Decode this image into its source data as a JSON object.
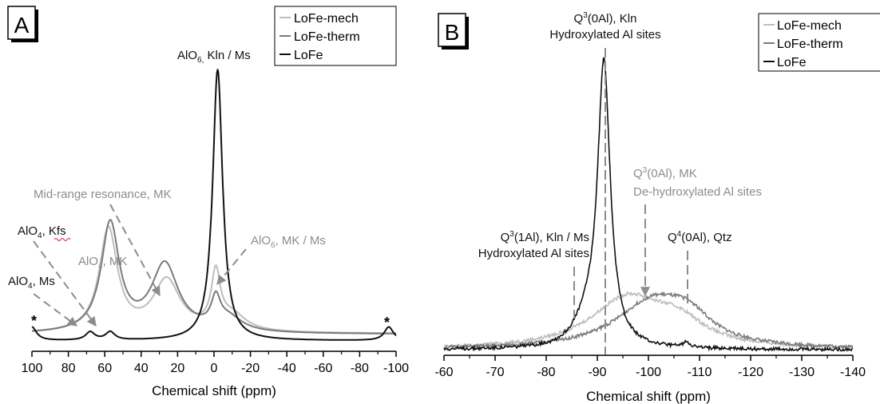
{
  "colors": {
    "mech": "#bdbdbd",
    "therm": "#7a7a7a",
    "lofe": "#111111",
    "annotation": "#8c8c8c",
    "axis": "#000000"
  },
  "chart_data": [
    {
      "type": "line",
      "panel_label": "A",
      "xlabel": "Chemical shift (ppm)",
      "xlim": [
        100,
        -100
      ],
      "xticks": [
        "100",
        "80",
        "60",
        "40",
        "20",
        "0",
        "-20",
        "-40",
        "-60",
        "-80",
        "-100"
      ],
      "tick_values": [
        100,
        80,
        60,
        40,
        20,
        0,
        -20,
        -40,
        -60,
        -80,
        -100
      ],
      "legend": [
        "LoFe-mech",
        "LoFe-therm",
        "LoFe"
      ],
      "legend_position": "top-right",
      "series": [
        {
          "name": "LoFe-mech",
          "peaks": [
            {
              "x": 58,
              "h": 0.38,
              "w": 6
            },
            {
              "x": 26,
              "h": 0.19,
              "w": 9
            },
            {
              "x": -1,
              "h": 0.2,
              "w": 3
            },
            {
              "x": -10,
              "h": 0.06,
              "w": 9
            }
          ],
          "baseline": 0.006
        },
        {
          "name": "LoFe-therm",
          "peaks": [
            {
              "x": 57,
              "h": 0.4,
              "w": 6
            },
            {
              "x": 27,
              "h": 0.25,
              "w": 9
            },
            {
              "x": -1,
              "h": 0.1,
              "w": 3
            },
            {
              "x": -8,
              "h": 0.05,
              "w": 9
            }
          ],
          "baseline": 0.004
        },
        {
          "name": "LoFe",
          "peaks": [
            {
              "x": -2,
              "h": 1.0,
              "w": 3.3
            },
            {
              "x": 68,
              "h": 0.03,
              "w": 3
            },
            {
              "x": 57,
              "h": 0.03,
              "w": 3
            },
            {
              "x": 100,
              "h": 0.05,
              "w": 3
            },
            {
              "x": -96,
              "h": 0.05,
              "w": 3
            }
          ],
          "baseline": -0.02
        }
      ],
      "annotations": [
        {
          "text": "AlO",
          "sub": "6,",
          "rest": " Kln / Ms",
          "color": "lofe"
        },
        {
          "text": "Mid-range resonance, MK",
          "color": "annotation"
        },
        {
          "text": "AlO",
          "sub": "4",
          "rest": ", MK",
          "color": "annotation"
        },
        {
          "text": "AlO",
          "sub": "6",
          "rest": ", MK / Ms",
          "color": "annotation"
        },
        {
          "text": "AlO",
          "sub": "4",
          "rest": ", Kfs",
          "color": "lofe"
        },
        {
          "text": "AlO",
          "sub": "4",
          "rest": ", Ms",
          "color": "lofe"
        }
      ],
      "markers": [
        "*",
        "*"
      ]
    },
    {
      "type": "line",
      "panel_label": "B",
      "xlabel": "Chemical shift (ppm)",
      "xlim": [
        -60,
        -140
      ],
      "xticks": [
        "-60",
        "-70",
        "-80",
        "-90",
        "-100",
        "-110",
        "-120",
        "-130",
        "-140"
      ],
      "tick_values": [
        -60,
        -70,
        -80,
        -90,
        -100,
        -110,
        -120,
        -130,
        -140
      ],
      "legend": [
        "LoFe-mech",
        "LoFe-therm",
        "LoFe"
      ],
      "legend_position": "top-right",
      "series": [
        {
          "name": "LoFe-mech",
          "peaks": [
            {
              "x": -96,
              "h": 0.18,
              "w": 9
            },
            {
              "x": -106,
              "h": 0.07,
              "w": 6
            }
          ],
          "baseline": 0.0
        },
        {
          "name": "LoFe-therm",
          "peaks": [
            {
              "x": -101,
              "h": 0.17,
              "w": 9
            },
            {
              "x": -108,
              "h": 0.07,
              "w": 5
            }
          ],
          "baseline": 0.0
        },
        {
          "name": "LoFe",
          "peaks": [
            {
              "x": -91.3,
              "h": 1.0,
              "w": 1.5
            },
            {
              "x": -88,
              "h": 0.08,
              "w": 3
            },
            {
              "x": -107.5,
              "h": 0.02,
              "w": 0.8
            }
          ],
          "baseline": 0.0
        }
      ],
      "annotations": [
        {
          "line1": "Q",
          "sup": "3",
          "rest": "(0Al), Kln",
          "line2": "Hydroxylated Al sites",
          "color": "lofe"
        },
        {
          "line1": "Q",
          "sup": "3",
          "rest": "(0Al), MK",
          "line2": "De-hydroxylated Al sites",
          "color": "annotation"
        },
        {
          "line1": "Q",
          "sup": "3",
          "rest": "(1Al), Kln / Ms",
          "line2": "Hydroxylated Al sites",
          "color": "lofe"
        },
        {
          "line1": "Q",
          "sup": "4",
          "rest": "(0Al), Qtz",
          "color": "lofe"
        }
      ]
    }
  ]
}
